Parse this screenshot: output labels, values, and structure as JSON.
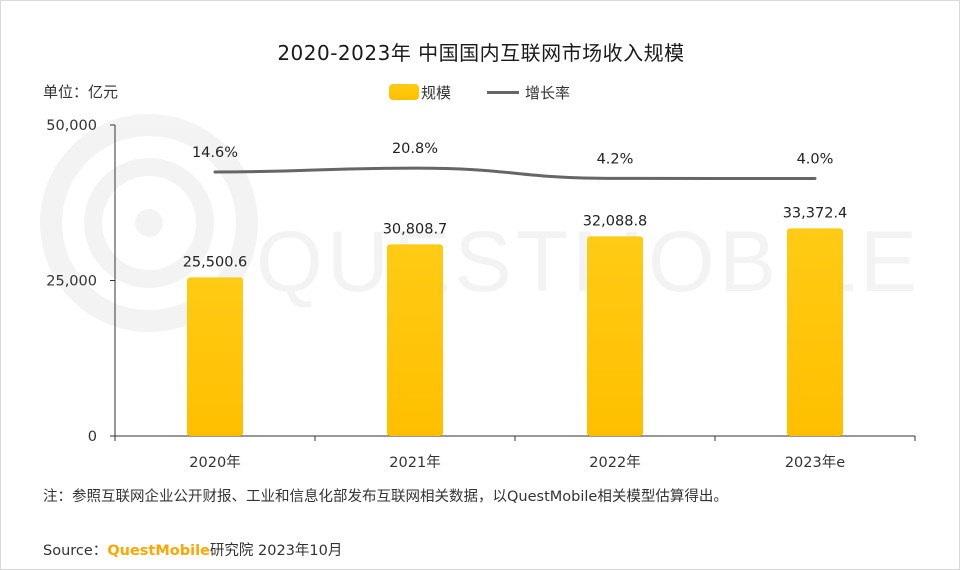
{
  "chart_data": {
    "type": "bar",
    "title": "2020-2023年 中国国内互联网市场收入规模",
    "unit_label": "单位：亿元",
    "categories": [
      "2020年",
      "2021年",
      "2022年",
      "2023年e"
    ],
    "series": [
      {
        "name": "规模",
        "kind": "bar",
        "values": [
          25500.6,
          30808.7,
          32088.8,
          33372.4
        ],
        "labels": [
          "25,500.6",
          "30,808.7",
          "32,088.8",
          "33,372.4"
        ],
        "color": "#ffc000"
      },
      {
        "name": "增长率",
        "kind": "line",
        "values": [
          14.6,
          20.8,
          4.2,
          4.0
        ],
        "labels": [
          "14.6%",
          "20.8%",
          "4.2%",
          "4.0%"
        ],
        "color": "#666666"
      }
    ],
    "yticks": [
      "50,000",
      "25,000",
      "0"
    ],
    "ytick_values": [
      50000,
      25000,
      0
    ],
    "ylim": [
      0,
      50000
    ],
    "legend_position": "top-center",
    "grid": false
  },
  "note": "注：参照互联网企业公开财报、工业和信息化部发布互联网相关数据，以QuestMobile相关模型估算得出。",
  "source": {
    "prefix": "Source：",
    "brand": "QuestMobile",
    "suffix": "研究院 2023年10月"
  },
  "watermark": "QUESTMOBILE"
}
